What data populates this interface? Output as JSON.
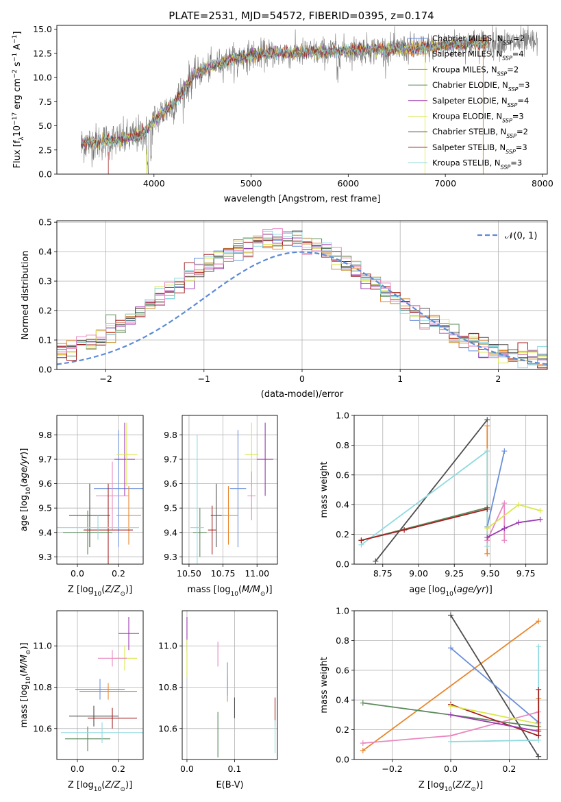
{
  "figure": {
    "title": "PLATE=2531, MJD=54572, FIBERID=0395, z=0.174"
  },
  "chart_data": [
    {
      "id": "spectrum",
      "type": "line",
      "title": "PLATE=2531, MJD=54572, FIBERID=0395, z=0.174",
      "xlabel": "wavelength [Angstrom, rest frame]",
      "ylabel": "Flux [f_λ 10^-17 erg cm^-2 s^-1 A^-1]",
      "xlim": [
        3000,
        8050
      ],
      "ylim": [
        0,
        15.4
      ],
      "xticks": [
        4000,
        5000,
        6000,
        7000,
        8000
      ],
      "yticks": [
        0.0,
        2.5,
        5.0,
        7.5,
        10.0,
        12.5,
        15.0
      ],
      "grid": false,
      "legend_position": "top-right",
      "continuum_x": [
        3250,
        3400,
        3500,
        3600,
        3700,
        3800,
        3900,
        4000,
        4100,
        4200,
        4300,
        4400,
        4600,
        4800,
        5000,
        5200,
        5400,
        5600,
        5800,
        6000,
        6200,
        6400,
        6600,
        6800,
        7000,
        7200,
        7400
      ],
      "continuum_y": [
        3.1,
        3.3,
        3.4,
        3.5,
        3.6,
        3.9,
        4.3,
        5.5,
        6.5,
        7.2,
        8.6,
        10.2,
        11.2,
        11.9,
        12.3,
        12.5,
        12.5,
        12.6,
        12.7,
        12.8,
        12.9,
        12.9,
        13.0,
        13.1,
        13.3,
        13.5,
        13.6
      ],
      "data_note_x_range": [
        3250,
        7950
      ],
      "series": [
        {
          "name": "Chabrier MILES, N_SSP=2",
          "color": "#6a8fd9"
        },
        {
          "name": "Salpeter MILES, N_SSP=4",
          "color": "#e9862c"
        },
        {
          "name": "Kroupa MILES, N_SSP=2",
          "color": "#c7922b"
        },
        {
          "name": "Chabrier ELODIE, N_SSP=3",
          "color": "#5b8a5b"
        },
        {
          "name": "Salpeter ELODIE, N_SSP=4",
          "color": "#9b39b0"
        },
        {
          "name": "Kroupa ELODIE, N_SSP=3",
          "color": "#d9e64a"
        },
        {
          "name": "Chabrier STELIB, N_SSP=2",
          "color": "#4d4d4d"
        },
        {
          "name": "Salpeter STELIB, N_SSP=3",
          "color": "#a31f1f"
        },
        {
          "name": "Kroupa STELIB, N_SSP=3",
          "color": "#8fd9e0"
        }
      ]
    },
    {
      "id": "residuals",
      "type": "line",
      "xlabel": "(data-model)/error",
      "ylabel": "Normed distribution",
      "xlim": [
        -2.5,
        2.5
      ],
      "ylim": [
        0,
        0.505
      ],
      "xticks": [
        -2,
        -1,
        0,
        1,
        2
      ],
      "yticks": [
        0.0,
        0.1,
        0.2,
        0.3,
        0.4,
        0.5
      ],
      "grid": true,
      "legend_position": "top-right",
      "reference": {
        "name": "𝒩(0, 1)",
        "color": "#5b8ad6",
        "style": "dashed",
        "mean": 0,
        "sigma": 1
      },
      "histogram_bins": 50,
      "histogram_colors": [
        "#6a8fd9",
        "#e9862c",
        "#c7922b",
        "#5b8a5b",
        "#9b39b0",
        "#d9e64a",
        "#4d4d4d",
        "#a31f1f",
        "#8fd9e0",
        "#e888c0"
      ]
    },
    {
      "id": "age-vs-Z",
      "type": "scatter",
      "xlabel": "Z [log10(Z/Z⊙)]",
      "ylabel": "age  [log10(age/yr)]",
      "xlim": [
        -0.1,
        0.32
      ],
      "ylim": [
        9.27,
        9.88
      ],
      "xticks": [
        0.0,
        0.2
      ],
      "yticks": [
        9.3,
        9.4,
        9.5,
        9.6,
        9.7,
        9.8
      ],
      "grid": true,
      "points": [
        {
          "x": 0.2,
          "y": 9.58,
          "xerr": 0.12,
          "yerr": 0.24,
          "color": "#6a8fd9"
        },
        {
          "x": 0.23,
          "y": 9.7,
          "xerr": 0.05,
          "yerr": 0.15,
          "color": "#9b39b0"
        },
        {
          "x": 0.24,
          "y": 9.72,
          "xerr": 0.05,
          "yerr": 0.13,
          "color": "#d9e64a"
        },
        {
          "x": 0.25,
          "y": 9.47,
          "xerr": 0.06,
          "yerr": 0.12,
          "color": "#e9862c"
        },
        {
          "x": 0.17,
          "y": 9.55,
          "xerr": 0.08,
          "yerr": 0.14,
          "color": "#e888c0"
        },
        {
          "x": 0.06,
          "y": 9.47,
          "xerr": 0.1,
          "yerr": 0.13,
          "color": "#4d4d4d"
        },
        {
          "x": 0.15,
          "y": 9.41,
          "xerr": 0.12,
          "yerr": 0.19,
          "color": "#a31f1f"
        },
        {
          "x": 0.05,
          "y": 9.4,
          "xerr": 0.12,
          "yerr": 0.09,
          "color": "#5b8a5b"
        },
        {
          "x": 0.1,
          "y": 9.42,
          "xerr": 0.2,
          "yerr": 0.05,
          "color": "#8fd9e0"
        }
      ]
    },
    {
      "id": "age-vs-mass",
      "type": "scatter",
      "xlabel": "mass [log10(M/M⊙)]",
      "ylabel": "",
      "xlim": [
        10.45,
        11.15
      ],
      "ylim": [
        9.27,
        9.88
      ],
      "xticks": [
        10.5,
        10.75,
        11.0
      ],
      "yticks": [
        9.3,
        9.4,
        9.5,
        9.6,
        9.7,
        9.8
      ],
      "grid": true,
      "points": [
        {
          "x": 10.86,
          "y": 9.58,
          "xerr": 0.06,
          "yerr": 0.24,
          "color": "#6a8fd9"
        },
        {
          "x": 11.06,
          "y": 9.7,
          "xerr": 0.06,
          "yerr": 0.15,
          "color": "#9b39b0"
        },
        {
          "x": 10.96,
          "y": 9.72,
          "xerr": 0.05,
          "yerr": 0.13,
          "color": "#d9e64a"
        },
        {
          "x": 10.79,
          "y": 9.47,
          "xerr": 0.07,
          "yerr": 0.12,
          "color": "#e9862c"
        },
        {
          "x": 10.96,
          "y": 9.55,
          "xerr": 0.03,
          "yerr": 0.1,
          "color": "#e888c0"
        },
        {
          "x": 10.7,
          "y": 9.47,
          "xerr": 0.04,
          "yerr": 0.13,
          "color": "#4d4d4d"
        },
        {
          "x": 10.67,
          "y": 9.41,
          "xerr": 0.03,
          "yerr": 0.1,
          "color": "#a31f1f"
        },
        {
          "x": 10.58,
          "y": 9.4,
          "xerr": 0.05,
          "yerr": 0.1,
          "color": "#5b8a5b"
        },
        {
          "x": 10.56,
          "y": 9.42,
          "xerr": 0.05,
          "yerr": 0.38,
          "color": "#8fd9e0"
        }
      ]
    },
    {
      "id": "weight-vs-age",
      "type": "line",
      "xlabel": "age  [log10(age/yr)]",
      "ylabel": "mass weight",
      "xlim": [
        8.55,
        9.9
      ],
      "ylim": [
        0,
        1.0
      ],
      "xticks": [
        8.75,
        9.0,
        9.25,
        9.5,
        9.75
      ],
      "yticks": [
        0.0,
        0.2,
        0.4,
        0.6,
        0.8,
        1.0
      ],
      "grid": true,
      "series": [
        {
          "color": "#4d4d4d",
          "x": [
            8.7,
            9.48
          ],
          "y": [
            0.02,
            0.97
          ]
        },
        {
          "color": "#e9862c",
          "x": [
            9.48,
            9.48
          ],
          "y": [
            0.07,
            0.93
          ]
        },
        {
          "color": "#8fd9e0",
          "x": [
            8.6,
            9.48,
            9.48
          ],
          "y": [
            0.13,
            0.76,
            0.12
          ]
        },
        {
          "color": "#6a8fd9",
          "x": [
            9.48,
            9.6
          ],
          "y": [
            0.25,
            0.76
          ]
        },
        {
          "color": "#5b8a5b",
          "x": [
            8.6,
            9.48
          ],
          "y": [
            0.16,
            0.38
          ]
        },
        {
          "color": "#a31f1f",
          "x": [
            8.6,
            8.9,
            9.48
          ],
          "y": [
            0.16,
            0.23,
            0.37
          ]
        },
        {
          "color": "#e888c0",
          "x": [
            9.48,
            9.6,
            9.6
          ],
          "y": [
            0.16,
            0.41,
            0.16
          ]
        },
        {
          "color": "#d9e64a",
          "x": [
            9.48,
            9.7,
            9.85
          ],
          "y": [
            0.24,
            0.4,
            0.36
          ]
        },
        {
          "color": "#9b39b0",
          "x": [
            9.48,
            9.6,
            9.7,
            9.85
          ],
          "y": [
            0.18,
            0.24,
            0.28,
            0.3
          ]
        }
      ]
    },
    {
      "id": "mass-vs-Z",
      "type": "scatter",
      "xlabel": "Z [log10(Z/Z⊙)]",
      "ylabel": "mass [log10(M/M⊙)]",
      "xlim": [
        -0.1,
        0.32
      ],
      "ylim": [
        10.45,
        11.17
      ],
      "xticks": [
        0.0,
        0.2
      ],
      "yticks": [
        10.6,
        10.8,
        11.0
      ],
      "grid": true,
      "points": [
        {
          "x": 0.25,
          "y": 11.06,
          "xerr": 0.05,
          "yerr": 0.08,
          "color": "#9b39b0"
        },
        {
          "x": 0.23,
          "y": 10.94,
          "xerr": 0.06,
          "yerr": 0.06,
          "color": "#d9e64a"
        },
        {
          "x": 0.17,
          "y": 10.94,
          "xerr": 0.07,
          "yerr": 0.04,
          "color": "#e888c0"
        },
        {
          "x": 0.11,
          "y": 10.79,
          "xerr": 0.12,
          "yerr": 0.05,
          "color": "#6a8fd9"
        },
        {
          "x": 0.15,
          "y": 10.78,
          "xerr": 0.14,
          "yerr": 0.04,
          "color": "#e9862c"
        },
        {
          "x": 0.08,
          "y": 10.66,
          "xerr": 0.12,
          "yerr": 0.05,
          "color": "#4d4d4d"
        },
        {
          "x": 0.17,
          "y": 10.65,
          "xerr": 0.12,
          "yerr": 0.05,
          "color": "#a31f1f"
        },
        {
          "x": 0.05,
          "y": 10.55,
          "xerr": 0.11,
          "yerr": 0.06,
          "color": "#5b8a5b"
        },
        {
          "x": 0.12,
          "y": 10.58,
          "xerr": 0.2,
          "yerr": 0.05,
          "color": "#8fd9e0"
        }
      ]
    },
    {
      "id": "mass-vs-ebv",
      "type": "scatter",
      "xlabel": "E(B-V)",
      "ylabel": "",
      "xlim": [
        -0.01,
        0.19
      ],
      "ylim": [
        10.45,
        11.17
      ],
      "xticks": [
        0.0,
        0.1
      ],
      "yticks": [
        10.6,
        10.8,
        11.0
      ],
      "grid": true,
      "points": [
        {
          "x": 0.0,
          "y": 11.06,
          "yerr": 0.08,
          "color": "#9b39b0"
        },
        {
          "x": 0.0,
          "y": 10.94,
          "yerr": 0.09,
          "color": "#d9e64a"
        },
        {
          "x": 0.065,
          "y": 10.96,
          "yerr": 0.06,
          "color": "#e888c0"
        },
        {
          "x": 0.085,
          "y": 10.79,
          "yerr": 0.06,
          "color": "#e9862c"
        },
        {
          "x": 0.085,
          "y": 10.84,
          "yerr": 0.08,
          "color": "#6a8fd9"
        },
        {
          "x": 0.1,
          "y": 10.7,
          "yerr": 0.05,
          "color": "#4d4d4d"
        },
        {
          "x": 0.185,
          "y": 10.68,
          "yerr": 0.07,
          "color": "#a31f1f"
        },
        {
          "x": 0.065,
          "y": 10.57,
          "yerr": 0.11,
          "color": "#5b8a5b"
        },
        {
          "x": 0.185,
          "y": 10.56,
          "yerr": 0.08,
          "color": "#8fd9e0"
        }
      ]
    },
    {
      "id": "weight-vs-Z",
      "type": "line",
      "xlabel": "Z [log10(Z/Z⊙)]",
      "ylabel": "mass weight",
      "xlim": [
        -0.33,
        0.33
      ],
      "ylim": [
        0,
        1.0
      ],
      "xticks": [
        -0.2,
        0.0,
        0.2
      ],
      "yticks": [
        0.0,
        0.2,
        0.4,
        0.6,
        0.8,
        1.0
      ],
      "grid": true,
      "series": [
        {
          "color": "#e9862c",
          "x": [
            -0.3,
            0.3
          ],
          "y": [
            0.06,
            0.93
          ]
        },
        {
          "color": "#4d4d4d",
          "x": [
            0.0,
            0.3
          ],
          "y": [
            0.97,
            0.02
          ]
        },
        {
          "color": "#6a8fd9",
          "x": [
            0.0,
            0.3
          ],
          "y": [
            0.75,
            0.25
          ]
        },
        {
          "color": "#8fd9e0",
          "x": [
            0.0,
            0.3,
            0.3
          ],
          "y": [
            0.12,
            0.13,
            0.76
          ]
        },
        {
          "color": "#5b8a5b",
          "x": [
            -0.3,
            0.3
          ],
          "y": [
            0.38,
            0.22
          ]
        },
        {
          "color": "#a31f1f",
          "x": [
            0.0,
            0.3
          ],
          "y": [
            0.37,
            0.16
          ]
        },
        {
          "color": "#e888c0",
          "x": [
            -0.3,
            0.0,
            0.3
          ],
          "y": [
            0.11,
            0.16,
            0.32
          ]
        },
        {
          "color": "#d9e64a",
          "x": [
            0.0,
            0.3
          ],
          "y": [
            0.36,
            0.24
          ]
        },
        {
          "color": "#9b39b0",
          "x": [
            0.0,
            0.3
          ],
          "y": [
            0.3,
            0.19
          ]
        },
        {
          "color": "#c7922b",
          "x": [
            0.3,
            0.3
          ],
          "y": [
            0.2,
            0.41
          ]
        },
        {
          "color": "#a31f1f",
          "x": [
            0.3,
            0.3
          ],
          "y": [
            0.16,
            0.47
          ]
        }
      ]
    }
  ]
}
